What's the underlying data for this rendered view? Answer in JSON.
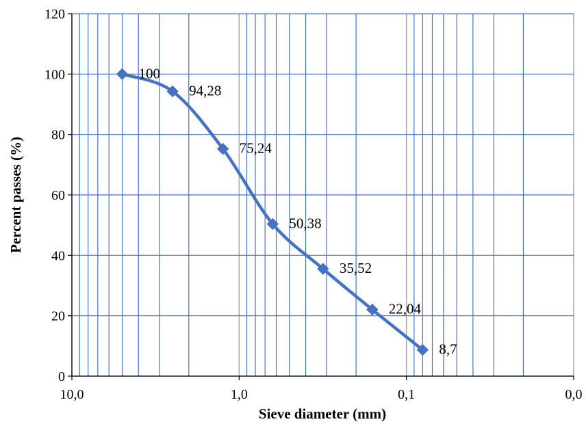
{
  "chart_data": {
    "type": "line",
    "title": "",
    "xlabel": "Sieve diameter (mm)",
    "ylabel": "Percent passes (%)",
    "x_scale": "log",
    "x_reversed": true,
    "xlim": [
      10,
      0.01
    ],
    "ylim": [
      0,
      120
    ],
    "y_ticks": [
      0,
      20,
      40,
      60,
      80,
      100,
      120
    ],
    "x_ticks": [
      {
        "value": 10,
        "label": "10,0"
      },
      {
        "value": 1,
        "label": "1,0"
      },
      {
        "value": 0.1,
        "label": "0,1"
      },
      {
        "value": 0.01,
        "label": "0,0"
      }
    ],
    "grid": true,
    "legend": "none",
    "series": [
      {
        "x": [
          5,
          2.5,
          1.25,
          0.63,
          0.315,
          0.16,
          0.08
        ],
        "values": [
          100,
          94.28,
          75.24,
          50.38,
          35.52,
          22.04,
          8.7
        ],
        "labels": [
          "100",
          "94,28",
          "75,24",
          "50,38",
          "35,52",
          "22,04",
          "8,7"
        ],
        "color": "#4472C4",
        "marker": "diamond",
        "smooth": true
      }
    ]
  },
  "colors": {
    "minor_grid": "#4472C4",
    "major_grid": "#A6A6A6",
    "axis": "#000000",
    "series": "#4472C4"
  }
}
